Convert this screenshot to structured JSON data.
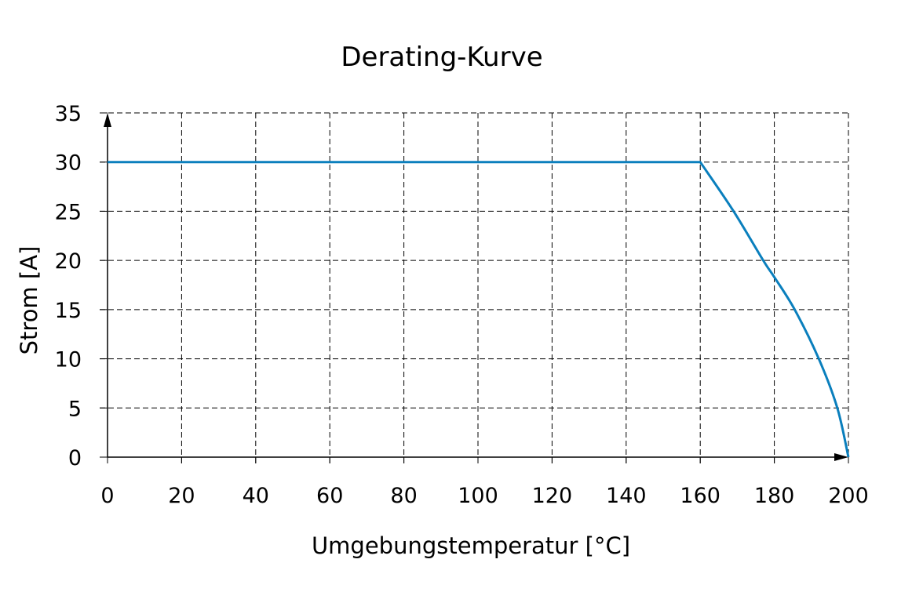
{
  "chart_data": {
    "type": "line",
    "title": "Derating-Kurve",
    "xlabel": "Umgebungstemperatur [°C]",
    "ylabel": "Strom [A]",
    "xlim": [
      0,
      200
    ],
    "ylim": [
      0,
      35
    ],
    "xticks": [
      0,
      20,
      40,
      60,
      80,
      100,
      120,
      140,
      160,
      180,
      200
    ],
    "yticks": [
      0,
      5,
      10,
      15,
      20,
      25,
      30,
      35
    ],
    "grid": true,
    "series": [
      {
        "color": "#0a7fbd",
        "points": [
          [
            0,
            30
          ],
          [
            160,
            30
          ],
          [
            169,
            25
          ],
          [
            177,
            20
          ],
          [
            180,
            18.3
          ],
          [
            185.5,
            15
          ],
          [
            192,
            10
          ],
          [
            197,
            5
          ],
          [
            200,
            0
          ]
        ]
      }
    ]
  }
}
